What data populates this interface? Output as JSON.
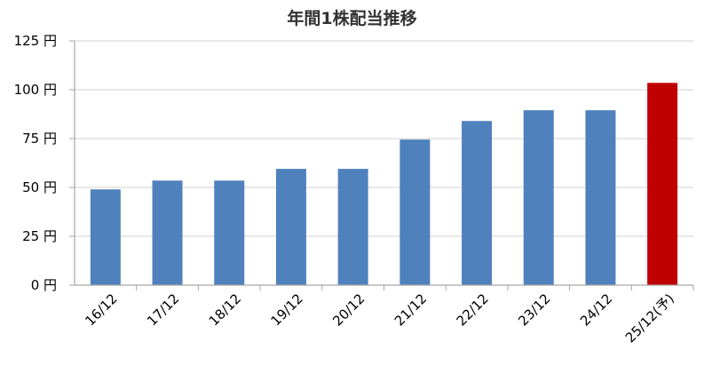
{
  "chart_data": {
    "type": "bar",
    "title": "年間1株配当推移",
    "categories": [
      "16/12",
      "17/12",
      "18/12",
      "19/12",
      "20/12",
      "21/12",
      "22/12",
      "23/12",
      "24/12",
      "25/12(予)"
    ],
    "values": [
      49,
      53.5,
      53.5,
      59.5,
      59.5,
      74.5,
      84,
      89.5,
      89.5,
      103.5
    ],
    "y_ticks": [
      "0 円",
      "25 円",
      "50 円",
      "75 円",
      "100 円",
      "125 円"
    ],
    "ylim": [
      0,
      125
    ],
    "grid": true,
    "colors": {
      "bar": "#4f81bd",
      "bar_highlight": "#c00000",
      "grid": "#d9d9d9",
      "axis": "#a6a6a6"
    },
    "highlight_index": 9
  }
}
